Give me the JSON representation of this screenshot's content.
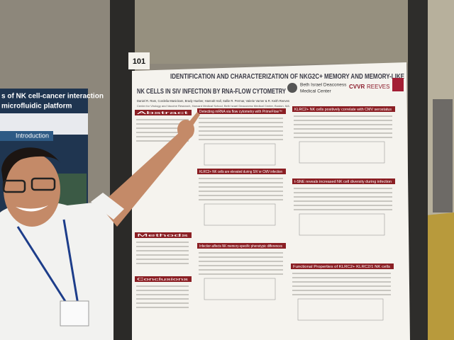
{
  "booth_number": "101",
  "poster": {
    "title_lines": [
      "IDENTIFICATION AND CHARACTERIZATION OF NKG2C+ MEMORY AND MEMORY-LIKE",
      "NK CELLS IN SIV INFECTION BY RNA-FLOW CYTOMETRY"
    ],
    "authors": "Daniel R. Ram, Cordelia Manickam, Brady Hueber, Hannah Hall, Sallie R. Permar, Valerie Varner & R. Keith Reeves",
    "affiliation": "Center for Virology and Vaccine Research, Harvard Medical School, Beth Israel Deaconess Medical Center, Boston, MA",
    "institution_lines": [
      "Beth Israel Deaconess",
      "Medical Center"
    ],
    "logo_text": "CVVR",
    "reeves_logo": "REEVES",
    "sections": [
      "Abstract",
      "Detecting mRNA via flow cytometry with PrimeFlow™",
      "KLRC2+ NK cells positively correlate with CMV serostatus",
      "KLRC2+ NK cells are elevated during SIV or CMV infection",
      "t-SNE reveals increased NK cell diversity during infection",
      "Methods",
      "Infection affects NK memory-specific phenotypic differences",
      "Functional Properties of KLRC2+ KLRC2/1 NK cells",
      "Conclusions"
    ]
  },
  "left_poster": {
    "title_lines": [
      "s of NK cell-cancer interaction",
      "microfluidic platform"
    ],
    "section": "Introduction"
  }
}
